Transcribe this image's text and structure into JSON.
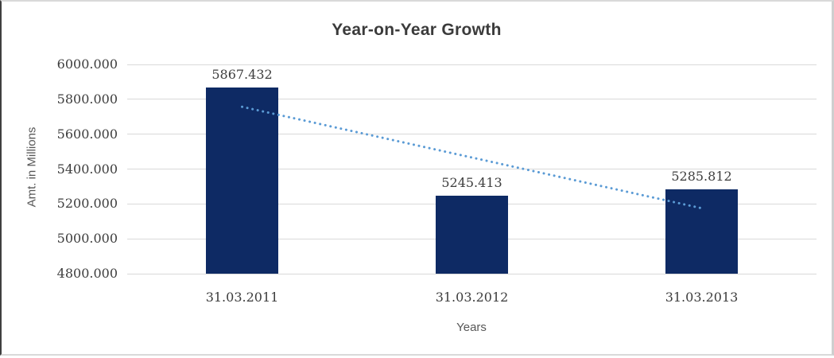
{
  "chart_data": {
    "type": "bar",
    "title": "Year-on-Year Growth",
    "categories": [
      "31.03.2011",
      "31.03.2012",
      "31.03.2013"
    ],
    "values": [
      5867.432,
      5245.413,
      5285.812
    ],
    "data_labels": [
      "5867.432",
      "5245.413",
      "5285.812"
    ],
    "xlabel": "Years",
    "ylabel": "Amt. in Millions",
    "ylim": [
      4800,
      6000
    ],
    "ytick_labels": [
      "6000.000",
      "5800.000",
      "5600.000",
      "5400.000",
      "5200.000",
      "5000.000",
      "4800.000"
    ],
    "grid": true,
    "legend_position": "none",
    "bar_color": "#0e2a64",
    "gridline_color": "#d9d9d9",
    "title_color": "#3b3b3b",
    "tick_label_color": "#3d3d3d",
    "axis_title_color": "#575757",
    "trendline": {
      "type": "linear",
      "style": "dotted",
      "color": "#5b9bd5"
    }
  }
}
